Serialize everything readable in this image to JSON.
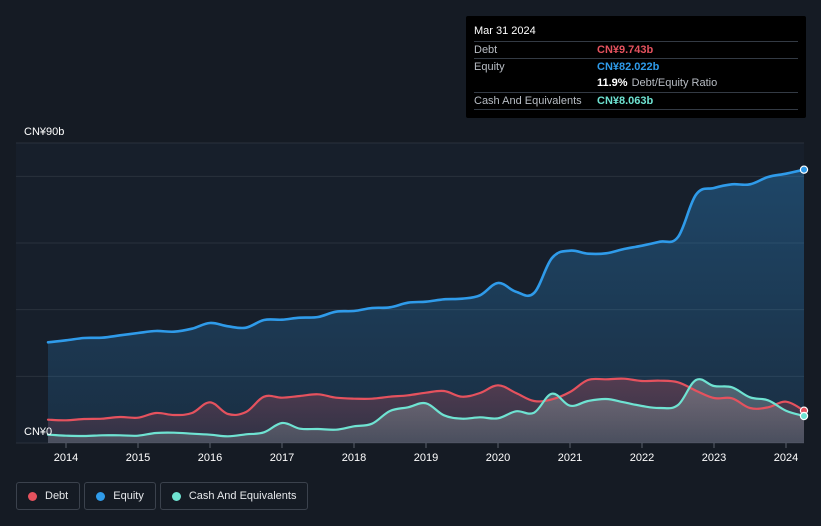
{
  "tooltip": {
    "date": "Mar 31 2024",
    "debt_label": "Debt",
    "debt_value": "CN¥9.743b",
    "equity_label": "Equity",
    "equity_value": "CN¥82.022b",
    "ratio_value": "11.9%",
    "ratio_label": "Debt/Equity Ratio",
    "cash_label": "Cash And Equivalents",
    "cash_value": "CN¥8.063b"
  },
  "legend": [
    {
      "label": "Debt",
      "color": "#e5525e"
    },
    {
      "label": "Equity",
      "color": "#2f9bea"
    },
    {
      "label": "Cash And Equivalents",
      "color": "#6fe3d2"
    }
  ],
  "colors": {
    "debt": "#e5525e",
    "equity": "#2f9bea",
    "cash": "#6fe3d2",
    "background": "#151b24",
    "grid": "#2a323d"
  },
  "chart_data": {
    "type": "line",
    "y_unit": "CN¥ billions",
    "ylim": [
      0,
      90
    ],
    "y_tick_labels": {
      "top": "CN¥90b",
      "bottom": "CN¥0"
    },
    "xlim": [
      2013.7,
      2024.25
    ],
    "x_ticks": [
      "2014",
      "2015",
      "2016",
      "2017",
      "2018",
      "2019",
      "2020",
      "2021",
      "2022",
      "2023",
      "2024"
    ],
    "grid": true,
    "legend_position": "bottom-left",
    "series": [
      {
        "name": "Equity",
        "key": "equity",
        "points": [
          [
            2013.75,
            30.2
          ],
          [
            2014.0,
            30.8
          ],
          [
            2014.25,
            31.5
          ],
          [
            2014.5,
            31.6
          ],
          [
            2014.75,
            32.3
          ],
          [
            2015.0,
            33.0
          ],
          [
            2015.25,
            33.6
          ],
          [
            2015.5,
            33.4
          ],
          [
            2015.75,
            34.3
          ],
          [
            2016.0,
            36.0
          ],
          [
            2016.25,
            35.0
          ],
          [
            2016.5,
            34.6
          ],
          [
            2016.75,
            36.9
          ],
          [
            2017.0,
            37.0
          ],
          [
            2017.25,
            37.6
          ],
          [
            2017.5,
            37.8
          ],
          [
            2017.75,
            39.4
          ],
          [
            2018.0,
            39.6
          ],
          [
            2018.25,
            40.5
          ],
          [
            2018.5,
            40.7
          ],
          [
            2018.75,
            42.1
          ],
          [
            2019.0,
            42.4
          ],
          [
            2019.25,
            43.1
          ],
          [
            2019.5,
            43.3
          ],
          [
            2019.75,
            44.3
          ],
          [
            2020.0,
            48.0
          ],
          [
            2020.25,
            45.4
          ],
          [
            2020.5,
            45.0
          ],
          [
            2020.75,
            55.5
          ],
          [
            2021.0,
            57.7
          ],
          [
            2021.25,
            56.8
          ],
          [
            2021.5,
            56.9
          ],
          [
            2021.75,
            58.2
          ],
          [
            2022.0,
            59.2
          ],
          [
            2022.25,
            60.4
          ],
          [
            2022.5,
            61.8
          ],
          [
            2022.75,
            74.5
          ],
          [
            2023.0,
            76.5
          ],
          [
            2023.25,
            77.6
          ],
          [
            2023.5,
            77.6
          ],
          [
            2023.75,
            79.8
          ],
          [
            2024.0,
            80.8
          ],
          [
            2024.25,
            82.0
          ]
        ]
      },
      {
        "name": "Debt",
        "key": "debt",
        "points": [
          [
            2013.75,
            7.0
          ],
          [
            2014.0,
            6.8
          ],
          [
            2014.25,
            7.2
          ],
          [
            2014.5,
            7.3
          ],
          [
            2014.75,
            7.8
          ],
          [
            2015.0,
            7.6
          ],
          [
            2015.25,
            9.0
          ],
          [
            2015.5,
            8.4
          ],
          [
            2015.75,
            9.0
          ],
          [
            2016.0,
            12.2
          ],
          [
            2016.25,
            8.7
          ],
          [
            2016.5,
            9.3
          ],
          [
            2016.75,
            13.9
          ],
          [
            2017.0,
            13.6
          ],
          [
            2017.25,
            14.1
          ],
          [
            2017.5,
            14.6
          ],
          [
            2017.75,
            13.6
          ],
          [
            2018.0,
            13.3
          ],
          [
            2018.25,
            13.3
          ],
          [
            2018.5,
            13.9
          ],
          [
            2018.75,
            14.3
          ],
          [
            2019.0,
            15.1
          ],
          [
            2019.25,
            15.6
          ],
          [
            2019.5,
            13.9
          ],
          [
            2019.75,
            15.0
          ],
          [
            2020.0,
            17.3
          ],
          [
            2020.25,
            15.0
          ],
          [
            2020.5,
            12.6
          ],
          [
            2020.75,
            13.1
          ],
          [
            2021.0,
            15.3
          ],
          [
            2021.25,
            18.9
          ],
          [
            2021.5,
            19.1
          ],
          [
            2021.75,
            19.3
          ],
          [
            2022.0,
            18.6
          ],
          [
            2022.25,
            18.7
          ],
          [
            2022.5,
            18.2
          ],
          [
            2022.75,
            15.7
          ],
          [
            2023.0,
            13.5
          ],
          [
            2023.25,
            13.4
          ],
          [
            2023.5,
            10.5
          ],
          [
            2023.75,
            10.7
          ],
          [
            2024.0,
            12.4
          ],
          [
            2024.25,
            9.7
          ]
        ]
      },
      {
        "name": "Cash And Equivalents",
        "key": "cash",
        "points": [
          [
            2013.75,
            2.5
          ],
          [
            2014.0,
            2.2
          ],
          [
            2014.25,
            2.1
          ],
          [
            2014.5,
            2.3
          ],
          [
            2014.75,
            2.3
          ],
          [
            2015.0,
            2.2
          ],
          [
            2015.25,
            3.0
          ],
          [
            2015.5,
            3.1
          ],
          [
            2015.75,
            2.8
          ],
          [
            2016.0,
            2.5
          ],
          [
            2016.25,
            2.0
          ],
          [
            2016.5,
            2.6
          ],
          [
            2016.75,
            3.2
          ],
          [
            2017.0,
            6.0
          ],
          [
            2017.25,
            4.3
          ],
          [
            2017.5,
            4.2
          ],
          [
            2017.75,
            4.0
          ],
          [
            2018.0,
            5.0
          ],
          [
            2018.25,
            5.8
          ],
          [
            2018.5,
            9.6
          ],
          [
            2018.75,
            10.7
          ],
          [
            2019.0,
            11.9
          ],
          [
            2019.25,
            8.3
          ],
          [
            2019.5,
            7.3
          ],
          [
            2019.75,
            7.7
          ],
          [
            2020.0,
            7.4
          ],
          [
            2020.25,
            9.5
          ],
          [
            2020.5,
            9.1
          ],
          [
            2020.75,
            14.8
          ],
          [
            2021.0,
            11.2
          ],
          [
            2021.25,
            12.6
          ],
          [
            2021.5,
            13.2
          ],
          [
            2021.75,
            12.2
          ],
          [
            2022.0,
            11.1
          ],
          [
            2022.25,
            10.5
          ],
          [
            2022.5,
            11.4
          ],
          [
            2022.75,
            18.9
          ],
          [
            2023.0,
            17.1
          ],
          [
            2023.25,
            16.7
          ],
          [
            2023.5,
            13.7
          ],
          [
            2023.75,
            12.8
          ],
          [
            2024.0,
            9.7
          ],
          [
            2024.25,
            8.1
          ]
        ]
      }
    ]
  }
}
